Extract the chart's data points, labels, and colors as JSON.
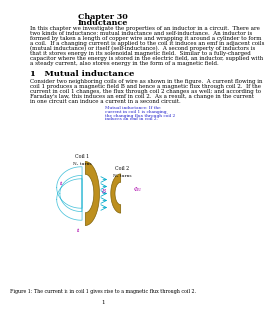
{
  "title1": "Chapter 30",
  "title2": "Inductance",
  "section": "1   Mutual inductance",
  "intro_lines": [
    "In this chapter we investigate the properties of an inductor in a circuit.  There are",
    "two kinds of inductance: mutual inductance and self-inductance.  An inductor is",
    "formed by taken a length of copper wire and wrapping it around a cylinder to form",
    "a coil.  If a changing current is applied to the coil it induces an emf in adjacent coils",
    "(mutual inductance) or itself (self-inductance).  A second property of inductors is",
    "that it stores energy in its solenoidal magnetic field.  Similar to a fully-charged",
    "capacitor where the energy is stored in the electric field, an inductor, supplied with",
    "a steady current, also stores energy in the form of a magnetic field."
  ],
  "section_lines": [
    "Consider two neighboring coils of wire as shown in the figure.  A current flowing in",
    "coil 1 produces a magnetic field B and hence a magnetic flux through coil 2.  If the",
    "current in coil 1 changes, the flux through coil 2 changes as well; and according to",
    "Faraday's law, this induces an emf in coil 2.  As a result, a change in the current",
    "in one circuit can induce a current in a second circuit."
  ],
  "ann_lines": [
    "Mutual inductance: If the",
    "current in coil 1 is changing,",
    "the changing flux through coil 2",
    "induces an emf in coil 2."
  ],
  "figure_caption": "Figure 1: The current i₁ in coil 1 gives rise to a magnetic flux through coil 2.",
  "page_number": "1",
  "bg_color": "#ffffff",
  "text_color": "#000000",
  "annotation_color": "#2222cc",
  "coil_color": "#b8860b",
  "coil_edge": "#7a5c00",
  "arrow_color": "#00aacc",
  "label_color": "#aa00aa"
}
